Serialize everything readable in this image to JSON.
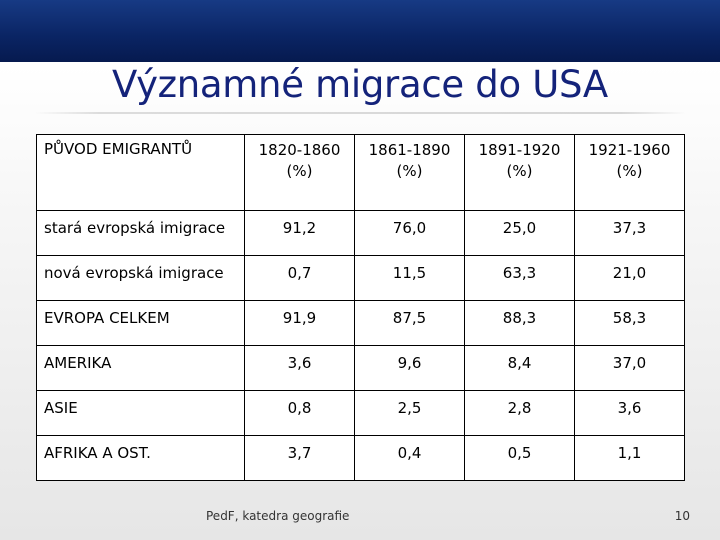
{
  "slide": {
    "title": "Významné migrace do USA",
    "footer_text": "PedF, katedra geografie",
    "page_number": "10"
  },
  "table": {
    "header_first": "PŮVOD EMIGRANTŮ",
    "periods": [
      {
        "years": "1820-1860",
        "unit": "(%)"
      },
      {
        "years": "1861-1890",
        "unit": "(%)"
      },
      {
        "years": "1891-1920",
        "unit": "(%)"
      },
      {
        "years": "1921-1960",
        "unit": "(%)"
      }
    ],
    "rows": [
      {
        "label": "stará evropská imigrace",
        "values": [
          "91,2",
          "76,0",
          "25,0",
          "37,3"
        ]
      },
      {
        "label": "nová evropská imigrace",
        "values": [
          "0,7",
          "11,5",
          "63,3",
          "21,0"
        ]
      },
      {
        "label": "EVROPA CELKEM",
        "values": [
          "91,9",
          "87,5",
          "88,3",
          "58,3"
        ]
      },
      {
        "label": "AMERIKA",
        "values": [
          "3,6",
          "9,6",
          "8,4",
          "37,0"
        ]
      },
      {
        "label": "ASIE",
        "values": [
          "0,8",
          "2,5",
          "2,8",
          "3,6"
        ]
      },
      {
        "label": "AFRIKA A OST.",
        "values": [
          "3,7",
          "0,4",
          "0,5",
          "1,1"
        ]
      }
    ]
  },
  "colors": {
    "top_bar": "#0a2463",
    "title_text": "#14237a"
  }
}
